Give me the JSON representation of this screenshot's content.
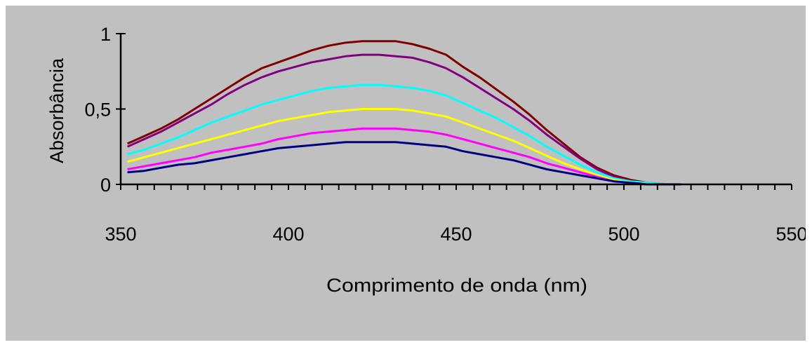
{
  "chart_data": {
    "type": "line",
    "title": "",
    "xlabel": "Comprimento de onda  (nm)",
    "ylabel": "Absorbância",
    "xlim": [
      350,
      550
    ],
    "ylim": [
      0,
      1
    ],
    "x_major_ticks": [
      350,
      400,
      450,
      500,
      550
    ],
    "x_tick_labels": [
      "350",
      "400",
      "450",
      "500",
      "550"
    ],
    "x_minor_step": 5,
    "y_ticks": [
      0,
      0.5,
      1
    ],
    "y_tick_labels": [
      "0",
      "0,5",
      "1"
    ],
    "grid": false,
    "legend": "none",
    "x": [
      352,
      357,
      362,
      367,
      372,
      377,
      382,
      387,
      392,
      397,
      402,
      407,
      412,
      417,
      422,
      427,
      432,
      437,
      442,
      447,
      452,
      457,
      462,
      467,
      472,
      477,
      482,
      487,
      492,
      497,
      502,
      507,
      512,
      517
    ],
    "series": [
      {
        "color": "#800000",
        "values": [
          0.27,
          0.32,
          0.37,
          0.43,
          0.5,
          0.57,
          0.64,
          0.71,
          0.77,
          0.81,
          0.85,
          0.89,
          0.92,
          0.94,
          0.95,
          0.95,
          0.95,
          0.93,
          0.9,
          0.86,
          0.78,
          0.71,
          0.63,
          0.55,
          0.46,
          0.36,
          0.27,
          0.18,
          0.11,
          0.06,
          0.03,
          0.01,
          0.0,
          0.0
        ]
      },
      {
        "color": "#800080",
        "values": [
          0.25,
          0.3,
          0.35,
          0.41,
          0.47,
          0.53,
          0.6,
          0.66,
          0.71,
          0.75,
          0.78,
          0.81,
          0.83,
          0.85,
          0.86,
          0.86,
          0.85,
          0.84,
          0.81,
          0.77,
          0.71,
          0.64,
          0.57,
          0.5,
          0.42,
          0.33,
          0.25,
          0.17,
          0.1,
          0.05,
          0.02,
          0.01,
          0.0,
          0.0
        ]
      },
      {
        "color": "#00ffff",
        "values": [
          0.2,
          0.23,
          0.27,
          0.31,
          0.36,
          0.41,
          0.45,
          0.49,
          0.53,
          0.56,
          0.59,
          0.62,
          0.64,
          0.65,
          0.66,
          0.66,
          0.65,
          0.64,
          0.62,
          0.59,
          0.54,
          0.49,
          0.44,
          0.38,
          0.32,
          0.25,
          0.19,
          0.13,
          0.08,
          0.04,
          0.02,
          0.01,
          0.0,
          0.0
        ]
      },
      {
        "color": "#ffff00",
        "values": [
          0.15,
          0.18,
          0.21,
          0.24,
          0.27,
          0.3,
          0.33,
          0.36,
          0.39,
          0.42,
          0.44,
          0.46,
          0.48,
          0.49,
          0.5,
          0.5,
          0.5,
          0.49,
          0.47,
          0.45,
          0.41,
          0.37,
          0.33,
          0.29,
          0.24,
          0.19,
          0.14,
          0.1,
          0.06,
          0.03,
          0.01,
          0.0,
          0.0,
          0.0
        ]
      },
      {
        "color": "#ff00ff",
        "values": [
          0.1,
          0.12,
          0.14,
          0.16,
          0.18,
          0.21,
          0.23,
          0.25,
          0.27,
          0.3,
          0.32,
          0.34,
          0.35,
          0.36,
          0.37,
          0.37,
          0.37,
          0.36,
          0.35,
          0.33,
          0.3,
          0.27,
          0.24,
          0.21,
          0.18,
          0.14,
          0.11,
          0.08,
          0.05,
          0.02,
          0.01,
          0.0,
          0.0,
          0.0
        ]
      },
      {
        "color": "#000080",
        "values": [
          0.08,
          0.09,
          0.11,
          0.13,
          0.14,
          0.16,
          0.18,
          0.2,
          0.22,
          0.24,
          0.25,
          0.26,
          0.27,
          0.28,
          0.28,
          0.28,
          0.28,
          0.27,
          0.26,
          0.25,
          0.22,
          0.2,
          0.18,
          0.16,
          0.13,
          0.1,
          0.08,
          0.06,
          0.04,
          0.02,
          0.01,
          0.0,
          0.0,
          0.0
        ]
      }
    ]
  }
}
